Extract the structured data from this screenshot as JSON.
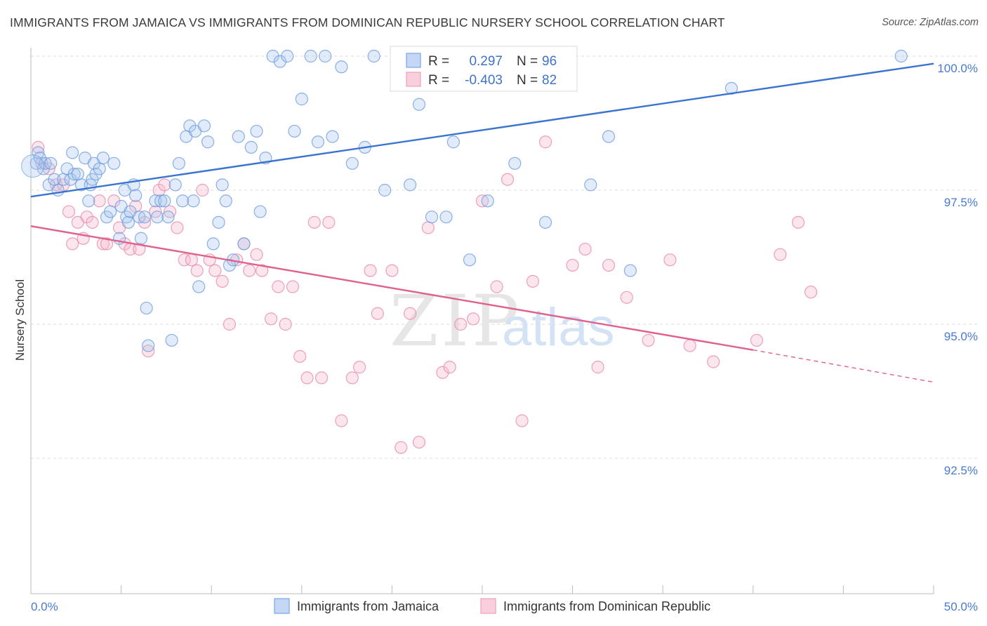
{
  "title": "IMMIGRANTS FROM JAMAICA VS IMMIGRANTS FROM DOMINICAN REPUBLIC NURSERY SCHOOL CORRELATION CHART",
  "source": "Source: ZipAtlas.com",
  "watermark": {
    "zip": "ZIP",
    "atlas": "atlas"
  },
  "legend": {
    "r_label": "R =",
    "n_label": "N =",
    "rows": [
      {
        "r": "0.297",
        "n": "96",
        "color": "#7aa6e8"
      },
      {
        "r": "-0.403",
        "n": "82",
        "color": "#f0a0bc"
      }
    ]
  },
  "bottom_legend": [
    "Immigrants from Jamaica",
    "Immigrants from Dominican Republic"
  ],
  "chart_data": {
    "type": "scatter",
    "xlabel": "",
    "ylabel": "Nursery School",
    "xlim": [
      0,
      50
    ],
    "ylim": [
      90.0,
      100.3
    ],
    "x_tick_labels": [
      "0.0%",
      "50.0%"
    ],
    "y_ticks": [
      92.5,
      95.0,
      97.5,
      100.0
    ],
    "y_tick_labels": [
      "92.5%",
      "95.0%",
      "97.5%",
      "100.0%"
    ],
    "grid": true,
    "colors": {
      "jamaica": "#4a7fd6",
      "dominican": "#e0608e"
    },
    "series": [
      {
        "name": "Immigrants from Jamaica",
        "color": "#4a7fd6",
        "trend": {
          "x": [
            0,
            50
          ],
          "y": [
            97.38,
            99.86
          ]
        },
        "points": [
          [
            0.3,
            98.0
          ],
          [
            0.4,
            98.2
          ],
          [
            0.5,
            98.1
          ],
          [
            0.7,
            97.9
          ],
          [
            0.8,
            98.0
          ],
          [
            1.0,
            97.6
          ],
          [
            1.1,
            98.0
          ],
          [
            1.3,
            97.7
          ],
          [
            1.5,
            97.5
          ],
          [
            1.8,
            97.7
          ],
          [
            2.0,
            97.9
          ],
          [
            2.2,
            97.7
          ],
          [
            2.3,
            98.2
          ],
          [
            2.4,
            97.8
          ],
          [
            2.6,
            97.8
          ],
          [
            2.8,
            97.6
          ],
          [
            3.0,
            98.1
          ],
          [
            3.2,
            97.3
          ],
          [
            3.3,
            97.6
          ],
          [
            3.4,
            97.7
          ],
          [
            3.5,
            98.0
          ],
          [
            3.6,
            97.8
          ],
          [
            3.8,
            97.9
          ],
          [
            4.0,
            98.1
          ],
          [
            4.2,
            97.0
          ],
          [
            4.4,
            97.1
          ],
          [
            4.6,
            98.0
          ],
          [
            4.9,
            96.6
          ],
          [
            5.0,
            97.2
          ],
          [
            5.2,
            97.5
          ],
          [
            5.3,
            97.0
          ],
          [
            5.4,
            96.9
          ],
          [
            5.5,
            97.1
          ],
          [
            5.7,
            97.6
          ],
          [
            5.8,
            97.4
          ],
          [
            6.0,
            97.0
          ],
          [
            6.1,
            96.6
          ],
          [
            6.3,
            97.0
          ],
          [
            6.4,
            95.3
          ],
          [
            6.5,
            94.6
          ],
          [
            6.9,
            97.3
          ],
          [
            7.0,
            97.0
          ],
          [
            7.2,
            97.3
          ],
          [
            7.4,
            97.3
          ],
          [
            7.6,
            97.0
          ],
          [
            7.8,
            94.7
          ],
          [
            8.0,
            97.6
          ],
          [
            8.2,
            98.0
          ],
          [
            8.4,
            97.3
          ],
          [
            8.6,
            98.5
          ],
          [
            8.8,
            98.7
          ],
          [
            9.0,
            97.3
          ],
          [
            9.1,
            98.6
          ],
          [
            9.3,
            95.7
          ],
          [
            9.6,
            98.7
          ],
          [
            9.8,
            98.4
          ],
          [
            10.1,
            96.5
          ],
          [
            10.4,
            96.9
          ],
          [
            10.6,
            97.6
          ],
          [
            10.8,
            97.3
          ],
          [
            11.0,
            96.1
          ],
          [
            11.2,
            96.2
          ],
          [
            11.5,
            98.5
          ],
          [
            11.8,
            96.5
          ],
          [
            12.2,
            98.3
          ],
          [
            12.5,
            98.6
          ],
          [
            12.7,
            97.1
          ],
          [
            13.0,
            98.1
          ],
          [
            13.4,
            100.0
          ],
          [
            13.8,
            99.9
          ],
          [
            14.2,
            100.0
          ],
          [
            14.6,
            98.6
          ],
          [
            15.0,
            99.2
          ],
          [
            15.5,
            100.0
          ],
          [
            15.9,
            98.4
          ],
          [
            16.3,
            100.0
          ],
          [
            16.7,
            98.5
          ],
          [
            17.2,
            99.8
          ],
          [
            17.8,
            98.0
          ],
          [
            18.5,
            98.3
          ],
          [
            19.0,
            100.0
          ],
          [
            19.6,
            97.5
          ],
          [
            21.0,
            97.6
          ],
          [
            21.5,
            99.1
          ],
          [
            22.2,
            97.0
          ],
          [
            23.0,
            97.0
          ],
          [
            23.4,
            98.4
          ],
          [
            24.3,
            96.2
          ],
          [
            25.3,
            97.3
          ],
          [
            26.8,
            98.0
          ],
          [
            28.5,
            96.9
          ],
          [
            31.0,
            97.6
          ],
          [
            32.0,
            98.5
          ],
          [
            33.2,
            96.0
          ],
          [
            48.2,
            100.0
          ],
          [
            38.8,
            99.4
          ]
        ]
      },
      {
        "name": "Immigrants from Dominican Republic",
        "color": "#e0608e",
        "trend": {
          "x": [
            0,
            40
          ],
          "y": [
            96.83,
            94.52
          ]
        },
        "trend_dashed": {
          "x": [
            40,
            50
          ],
          "y": [
            94.52,
            93.92
          ]
        },
        "points": [
          [
            0.4,
            98.3
          ],
          [
            0.6,
            98.0
          ],
          [
            1.0,
            97.9
          ],
          [
            1.4,
            97.6
          ],
          [
            1.8,
            97.6
          ],
          [
            2.1,
            97.1
          ],
          [
            2.3,
            96.5
          ],
          [
            2.6,
            96.9
          ],
          [
            2.9,
            96.6
          ],
          [
            3.1,
            97.0
          ],
          [
            3.4,
            96.9
          ],
          [
            3.8,
            97.3
          ],
          [
            4.0,
            96.5
          ],
          [
            4.2,
            96.5
          ],
          [
            4.6,
            97.3
          ],
          [
            4.9,
            96.8
          ],
          [
            5.2,
            96.5
          ],
          [
            5.5,
            96.4
          ],
          [
            5.8,
            97.2
          ],
          [
            6.0,
            96.4
          ],
          [
            6.3,
            96.9
          ],
          [
            6.5,
            94.5
          ],
          [
            6.9,
            97.1
          ],
          [
            7.1,
            97.5
          ],
          [
            7.4,
            97.6
          ],
          [
            7.7,
            97.1
          ],
          [
            8.1,
            96.8
          ],
          [
            8.5,
            96.2
          ],
          [
            8.9,
            96.2
          ],
          [
            9.2,
            96.0
          ],
          [
            9.5,
            97.5
          ],
          [
            9.9,
            96.2
          ],
          [
            10.2,
            96.0
          ],
          [
            10.6,
            95.8
          ],
          [
            11.0,
            95.0
          ],
          [
            11.4,
            96.2
          ],
          [
            11.8,
            96.5
          ],
          [
            12.1,
            96.0
          ],
          [
            12.5,
            96.3
          ],
          [
            12.8,
            96.0
          ],
          [
            13.3,
            95.1
          ],
          [
            13.7,
            95.7
          ],
          [
            14.1,
            95.0
          ],
          [
            14.5,
            95.7
          ],
          [
            14.9,
            94.4
          ],
          [
            15.3,
            94.0
          ],
          [
            15.7,
            96.9
          ],
          [
            16.1,
            94.0
          ],
          [
            16.5,
            96.9
          ],
          [
            17.2,
            93.2
          ],
          [
            17.8,
            94.0
          ],
          [
            18.2,
            94.2
          ],
          [
            18.8,
            96.0
          ],
          [
            19.2,
            95.2
          ],
          [
            20.0,
            96.0
          ],
          [
            20.5,
            92.7
          ],
          [
            21.0,
            95.2
          ],
          [
            21.5,
            92.8
          ],
          [
            22.0,
            96.8
          ],
          [
            22.8,
            94.1
          ],
          [
            23.2,
            94.2
          ],
          [
            23.8,
            95.0
          ],
          [
            24.5,
            95.1
          ],
          [
            25.0,
            97.3
          ],
          [
            25.8,
            95.7
          ],
          [
            26.4,
            97.7
          ],
          [
            27.2,
            93.2
          ],
          [
            27.8,
            95.8
          ],
          [
            28.5,
            98.4
          ],
          [
            30.0,
            96.1
          ],
          [
            30.7,
            96.4
          ],
          [
            31.4,
            94.2
          ],
          [
            32.0,
            96.1
          ],
          [
            33.0,
            95.5
          ],
          [
            34.2,
            94.7
          ],
          [
            35.4,
            96.2
          ],
          [
            36.5,
            94.6
          ],
          [
            37.8,
            94.3
          ],
          [
            40.2,
            94.7
          ],
          [
            41.5,
            96.3
          ],
          [
            42.5,
            96.9
          ],
          [
            43.2,
            95.6
          ]
        ]
      }
    ]
  }
}
